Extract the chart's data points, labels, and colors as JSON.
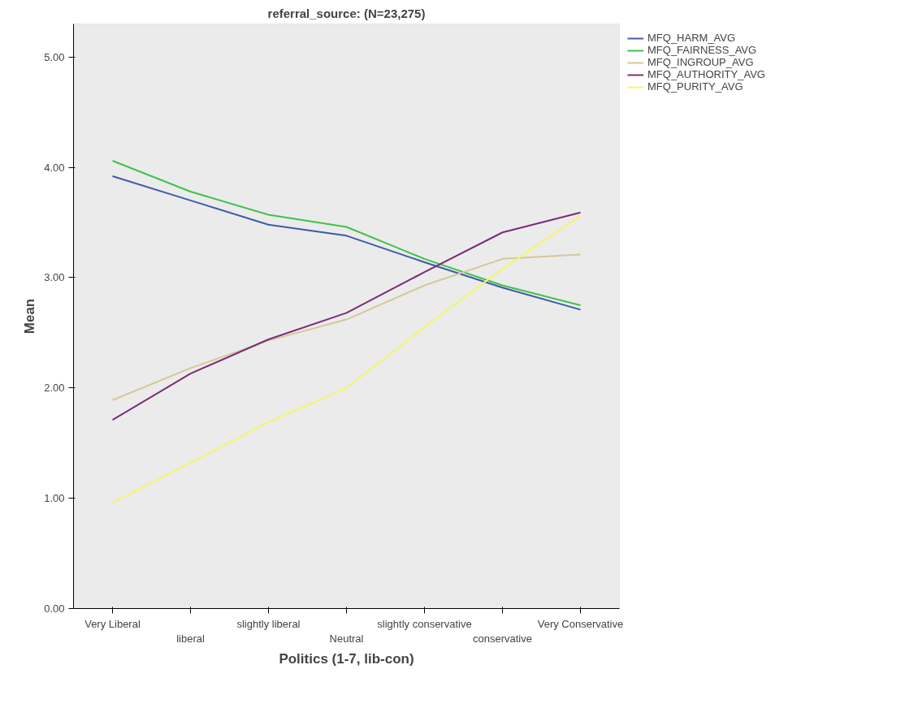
{
  "chart_data": {
    "type": "line",
    "title": "referral_source: (N=23,275)",
    "xlabel": "Politics (1-7, lib-con)",
    "ylabel": "Mean",
    "categories": [
      "Very Liberal",
      "liberal",
      "slightly liberal",
      "Neutral",
      "slightly conservative",
      "conservative",
      "Very Conservative"
    ],
    "ylim": [
      0,
      5.3
    ],
    "yticks": [
      {
        "value": 0,
        "label": "0.00"
      },
      {
        "value": 1,
        "label": "1.00"
      },
      {
        "value": 2,
        "label": "2.00"
      },
      {
        "value": 3,
        "label": "3.00"
      },
      {
        "value": 4,
        "label": "4.00"
      },
      {
        "value": 5,
        "label": "5.00"
      }
    ],
    "grid": false,
    "legend": "top right",
    "marker": "none",
    "line_style": "solid",
    "series": [
      {
        "name": "MFQ_HARM_AVG",
        "color": "#3e5aa8",
        "values": [
          3.92,
          3.7,
          3.48,
          3.38,
          3.14,
          2.91,
          2.71
        ]
      },
      {
        "name": "MFQ_FAIRNESS_AVG",
        "color": "#3ec34a",
        "values": [
          4.06,
          3.78,
          3.57,
          3.46,
          3.17,
          2.93,
          2.75
        ]
      },
      {
        "name": "MFQ_INGROUP_AVG",
        "color": "#d4c89a",
        "values": [
          1.89,
          2.18,
          2.43,
          2.62,
          2.93,
          3.17,
          3.21
        ]
      },
      {
        "name": "MFQ_AUTHORITY_AVG",
        "color": "#7b2c77",
        "values": [
          1.71,
          2.13,
          2.44,
          2.68,
          3.05,
          3.41,
          3.59
        ]
      },
      {
        "name": "MFQ_PURITY_AVG",
        "color": "#f5f56a",
        "values": [
          0.96,
          1.32,
          1.69,
          2.0,
          2.55,
          3.08,
          3.56
        ]
      }
    ]
  }
}
